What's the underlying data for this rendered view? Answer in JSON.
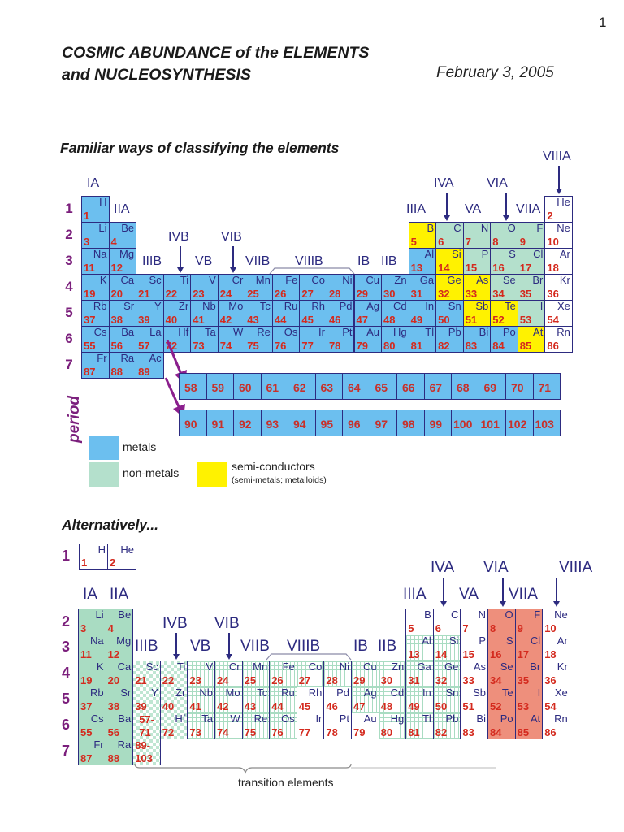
{
  "page": {
    "number": "1",
    "title_line1": "COSMIC ABUNDANCE of the ELEMENTS",
    "title_line2": "and NUCLEOSYNTHESIS",
    "date": "February 3, 2005"
  },
  "section1": {
    "heading": "Familiar ways of classifying the elements",
    "period_axis_label": "period",
    "periods": [
      "1",
      "2",
      "3",
      "4",
      "5",
      "6",
      "7"
    ],
    "groups": {
      "IA": "IA",
      "IIA": "IIA",
      "IIIB": "IIIB",
      "IVB": "IVB",
      "VB": "VB",
      "VIB": "VIB",
      "VIIB": "VIIB",
      "VIIIB": "VIIIB",
      "IB": "IB",
      "IIB": "IIB",
      "IIIA": "IIIA",
      "IVA": "IVA",
      "VA": "VA",
      "VIA": "VIA",
      "VIIA": "VIIA",
      "VIIIA": "VIIIA"
    },
    "lanthanides": [
      "58",
      "59",
      "60",
      "61",
      "62",
      "63",
      "64",
      "65",
      "66",
      "67",
      "68",
      "69",
      "70",
      "71"
    ],
    "actinides": [
      "90",
      "91",
      "92",
      "93",
      "94",
      "95",
      "96",
      "97",
      "98",
      "99",
      "100",
      "101",
      "102",
      "103"
    ],
    "legend": {
      "metals": "metals",
      "non_metals": "non-metals",
      "semi_conductors": "semi-conductors",
      "semi_conductors_sub": "(semi-metals; metalloids)",
      "colors": {
        "metals": "#6cbfef",
        "non_metals": "#b4e0cc",
        "semi_conductors": "#fff200"
      }
    }
  },
  "section2": {
    "heading": "Alternatively...",
    "periods": [
      "1",
      "2",
      "3",
      "4",
      "5",
      "6",
      "7"
    ],
    "groups": {
      "IA": "IA",
      "IIA": "IIA",
      "IIIB": "IIIB",
      "IVB": "IVB",
      "VB": "VB",
      "VIB": "VIB",
      "VIIB": "VIIB",
      "VIIIB": "VIIIB",
      "IB": "IB",
      "IIB": "IIB",
      "IIIA": "IIIA",
      "IVA": "IVA",
      "VA": "VA",
      "VIA": "VIA",
      "VIIA": "VIIA",
      "VIIIA": "VIIIA"
    },
    "transition_label": "transition elements",
    "lanthanide_range": "57-\n71",
    "actinide_range": "89-\n103"
  },
  "elements": [
    {
      "sym": "H",
      "num": "1",
      "row": 1,
      "col": 1,
      "cls1": "metal",
      "cls2": "white"
    },
    {
      "sym": "He",
      "num": "2",
      "row": 1,
      "col": 18,
      "cls1": "noble",
      "cls2": "white"
    },
    {
      "sym": "Li",
      "num": "3",
      "row": 2,
      "col": 1,
      "cls1": "metal",
      "cls2": "green2"
    },
    {
      "sym": "Be",
      "num": "4",
      "row": 2,
      "col": 2,
      "cls1": "metal",
      "cls2": "green2"
    },
    {
      "sym": "B",
      "num": "5",
      "row": 2,
      "col": 13,
      "cls1": "semi",
      "cls2": "white"
    },
    {
      "sym": "C",
      "num": "6",
      "row": 2,
      "col": 14,
      "cls1": "nonmetal",
      "cls2": "white"
    },
    {
      "sym": "N",
      "num": "7",
      "row": 2,
      "col": 15,
      "cls1": "nonmetal",
      "cls2": "white"
    },
    {
      "sym": "O",
      "num": "8",
      "row": 2,
      "col": 16,
      "cls1": "nonmetal",
      "cls2": "red"
    },
    {
      "sym": "F",
      "num": "9",
      "row": 2,
      "col": 17,
      "cls1": "nonmetal",
      "cls2": "red"
    },
    {
      "sym": "Ne",
      "num": "10",
      "row": 2,
      "col": 18,
      "cls1": "noble",
      "cls2": "white"
    },
    {
      "sym": "Na",
      "num": "11",
      "row": 3,
      "col": 1,
      "cls1": "metal",
      "cls2": "green2"
    },
    {
      "sym": "Mg",
      "num": "12",
      "row": 3,
      "col": 2,
      "cls1": "metal",
      "cls2": "green2"
    },
    {
      "sym": "Al",
      "num": "13",
      "row": 3,
      "col": 13,
      "cls1": "metal",
      "cls2": "grid"
    },
    {
      "sym": "Si",
      "num": "14",
      "row": 3,
      "col": 14,
      "cls1": "semi",
      "cls2": "grid"
    },
    {
      "sym": "P",
      "num": "15",
      "row": 3,
      "col": 15,
      "cls1": "nonmetal",
      "cls2": "white"
    },
    {
      "sym": "S",
      "num": "16",
      "row": 3,
      "col": 16,
      "cls1": "nonmetal",
      "cls2": "red"
    },
    {
      "sym": "Cl",
      "num": "17",
      "row": 3,
      "col": 17,
      "cls1": "nonmetal",
      "cls2": "red"
    },
    {
      "sym": "Ar",
      "num": "18",
      "row": 3,
      "col": 18,
      "cls1": "noble",
      "cls2": "white"
    },
    {
      "sym": "K",
      "num": "19",
      "row": 4,
      "col": 1,
      "cls1": "metal",
      "cls2": "green2"
    },
    {
      "sym": "Ca",
      "num": "20",
      "row": 4,
      "col": 2,
      "cls1": "metal",
      "cls2": "green2"
    },
    {
      "sym": "Sc",
      "num": "21",
      "row": 4,
      "col": 3,
      "cls1": "metal",
      "cls2": "check"
    },
    {
      "sym": "Ti",
      "num": "22",
      "row": 4,
      "col": 4,
      "cls1": "metal",
      "cls2": "check"
    },
    {
      "sym": "V",
      "num": "23",
      "row": 4,
      "col": 5,
      "cls1": "metal",
      "cls2": "grid"
    },
    {
      "sym": "Cr",
      "num": "24",
      "row": 4,
      "col": 6,
      "cls1": "metal",
      "cls2": "grid"
    },
    {
      "sym": "Mn",
      "num": "25",
      "row": 4,
      "col": 7,
      "cls1": "metal",
      "cls2": "grid"
    },
    {
      "sym": "Fe",
      "num": "26",
      "row": 4,
      "col": 8,
      "cls1": "metal",
      "cls2": "grid"
    },
    {
      "sym": "Co",
      "num": "27",
      "row": 4,
      "col": 9,
      "cls1": "metal",
      "cls2": "grid"
    },
    {
      "sym": "Ni",
      "num": "28",
      "row": 4,
      "col": 10,
      "cls1": "metal",
      "cls2": "grid"
    },
    {
      "sym": "Cu",
      "num": "29",
      "row": 4,
      "col": 11,
      "cls1": "metal",
      "cls2": "grid"
    },
    {
      "sym": "Zn",
      "num": "30",
      "row": 4,
      "col": 12,
      "cls1": "metal",
      "cls2": "grid"
    },
    {
      "sym": "Ga",
      "num": "31",
      "row": 4,
      "col": 13,
      "cls1": "metal",
      "cls2": "grid"
    },
    {
      "sym": "Ge",
      "num": "32",
      "row": 4,
      "col": 14,
      "cls1": "semi",
      "cls2": "grid"
    },
    {
      "sym": "As",
      "num": "33",
      "row": 4,
      "col": 15,
      "cls1": "semi",
      "cls2": "white"
    },
    {
      "sym": "Se",
      "num": "34",
      "row": 4,
      "col": 16,
      "cls1": "nonmetal",
      "cls2": "red"
    },
    {
      "sym": "Br",
      "num": "35",
      "row": 4,
      "col": 17,
      "cls1": "nonmetal",
      "cls2": "red"
    },
    {
      "sym": "Kr",
      "num": "36",
      "row": 4,
      "col": 18,
      "cls1": "noble",
      "cls2": "white"
    },
    {
      "sym": "Rb",
      "num": "37",
      "row": 5,
      "col": 1,
      "cls1": "metal",
      "cls2": "green2"
    },
    {
      "sym": "Sr",
      "num": "38",
      "row": 5,
      "col": 2,
      "cls1": "metal",
      "cls2": "green2"
    },
    {
      "sym": "Y",
      "num": "39",
      "row": 5,
      "col": 3,
      "cls1": "metal",
      "cls2": "check"
    },
    {
      "sym": "Zr",
      "num": "40",
      "row": 5,
      "col": 4,
      "cls1": "metal",
      "cls2": "check"
    },
    {
      "sym": "Nb",
      "num": "41",
      "row": 5,
      "col": 5,
      "cls1": "metal",
      "cls2": "grid"
    },
    {
      "sym": "Mo",
      "num": "42",
      "row": 5,
      "col": 6,
      "cls1": "metal",
      "cls2": "grid"
    },
    {
      "sym": "Tc",
      "num": "43",
      "row": 5,
      "col": 7,
      "cls1": "metal",
      "cls2": "grid"
    },
    {
      "sym": "Ru",
      "num": "44",
      "row": 5,
      "col": 8,
      "cls1": "metal",
      "cls2": "grid"
    },
    {
      "sym": "Rh",
      "num": "45",
      "row": 5,
      "col": 9,
      "cls1": "metal",
      "cls2": "white"
    },
    {
      "sym": "Pd",
      "num": "46",
      "row": 5,
      "col": 10,
      "cls1": "metal",
      "cls2": "white"
    },
    {
      "sym": "Ag",
      "num": "47",
      "row": 5,
      "col": 11,
      "cls1": "metal",
      "cls2": "grid"
    },
    {
      "sym": "Cd",
      "num": "48",
      "row": 5,
      "col": 12,
      "cls1": "metal",
      "cls2": "grid"
    },
    {
      "sym": "In",
      "num": "49",
      "row": 5,
      "col": 13,
      "cls1": "metal",
      "cls2": "grid"
    },
    {
      "sym": "Sn",
      "num": "50",
      "row": 5,
      "col": 14,
      "cls1": "metal",
      "cls2": "grid"
    },
    {
      "sym": "Sb",
      "num": "51",
      "row": 5,
      "col": 15,
      "cls1": "semi",
      "cls2": "white"
    },
    {
      "sym": "Te",
      "num": "52",
      "row": 5,
      "col": 16,
      "cls1": "semi",
      "cls2": "red"
    },
    {
      "sym": "I",
      "num": "53",
      "row": 5,
      "col": 17,
      "cls1": "nonmetal",
      "cls2": "red"
    },
    {
      "sym": "Xe",
      "num": "54",
      "row": 5,
      "col": 18,
      "cls1": "noble",
      "cls2": "white"
    },
    {
      "sym": "Cs",
      "num": "55",
      "row": 6,
      "col": 1,
      "cls1": "metal",
      "cls2": "green2"
    },
    {
      "sym": "Ba",
      "num": "56",
      "row": 6,
      "col": 2,
      "cls1": "metal",
      "cls2": "green2"
    },
    {
      "sym": "La",
      "num": "57",
      "row": 6,
      "col": 3,
      "cls1": "metal",
      "cls2": "check"
    },
    {
      "sym": "Hf",
      "num": "72",
      "row": 6,
      "col": 4,
      "cls1": "metal",
      "cls2": "check"
    },
    {
      "sym": "Ta",
      "num": "73",
      "row": 6,
      "col": 5,
      "cls1": "metal",
      "cls2": "grid"
    },
    {
      "sym": "W",
      "num": "74",
      "row": 6,
      "col": 6,
      "cls1": "metal",
      "cls2": "grid"
    },
    {
      "sym": "Re",
      "num": "75",
      "row": 6,
      "col": 7,
      "cls1": "metal",
      "cls2": "grid"
    },
    {
      "sym": "Os",
      "num": "76",
      "row": 6,
      "col": 8,
      "cls1": "metal",
      "cls2": "grid"
    },
    {
      "sym": "Ir",
      "num": "77",
      "row": 6,
      "col": 9,
      "cls1": "metal",
      "cls2": "white"
    },
    {
      "sym": "Pt",
      "num": "78",
      "row": 6,
      "col": 10,
      "cls1": "metal",
      "cls2": "white"
    },
    {
      "sym": "Au",
      "num": "79",
      "row": 6,
      "col": 11,
      "cls1": "metal",
      "cls2": "white"
    },
    {
      "sym": "Hg",
      "num": "80",
      "row": 6,
      "col": 12,
      "cls1": "metal",
      "cls2": "grid"
    },
    {
      "sym": "Tl",
      "num": "81",
      "row": 6,
      "col": 13,
      "cls1": "metal",
      "cls2": "grid"
    },
    {
      "sym": "Pb",
      "num": "82",
      "row": 6,
      "col": 14,
      "cls1": "metal",
      "cls2": "grid"
    },
    {
      "sym": "Bi",
      "num": "83",
      "row": 6,
      "col": 15,
      "cls1": "metal",
      "cls2": "white"
    },
    {
      "sym": "Po",
      "num": "84",
      "row": 6,
      "col": 16,
      "cls1": "metal",
      "cls2": "red"
    },
    {
      "sym": "At",
      "num": "85",
      "row": 6,
      "col": 17,
      "cls1": "semi",
      "cls2": "red"
    },
    {
      "sym": "Rn",
      "num": "86",
      "row": 6,
      "col": 18,
      "cls1": "noble",
      "cls2": "white"
    },
    {
      "sym": "Fr",
      "num": "87",
      "row": 7,
      "col": 1,
      "cls1": "metal",
      "cls2": "green2"
    },
    {
      "sym": "Ra",
      "num": "88",
      "row": 7,
      "col": 2,
      "cls1": "metal",
      "cls2": "green2"
    },
    {
      "sym": "Ac",
      "num": "89",
      "row": 7,
      "col": 3,
      "cls1": "metal",
      "cls2": "check"
    }
  ]
}
